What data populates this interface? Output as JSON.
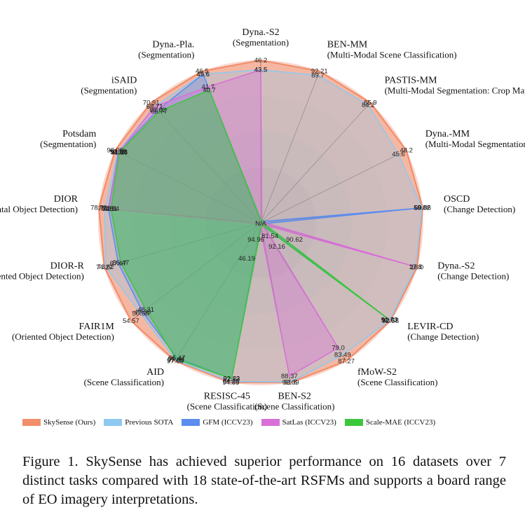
{
  "chart_data": {
    "type": "radar",
    "axes": [
      {
        "name": "Dyna.-S2",
        "task": "(Segmentation)",
        "values": {
          "skysense": 46.2,
          "sota": 43.5,
          "satlas": 43.5
        }
      },
      {
        "name": "BEN-MM",
        "task": "(Multi-Modal Scene Classification)",
        "values": {
          "skysense": 92.21,
          "sota": 89.7
        }
      },
      {
        "name": "PASTIS-MM",
        "task": "(Multi-Modal Segmentation: Crop Mapping)",
        "values": {
          "skysense": 85.9,
          "sota": 84.2
        }
      },
      {
        "name": "Dyna.-MM",
        "task": "(Multi-Modal Segmentation: LandCover Mapping )",
        "values": {
          "skysense": 48.2,
          "sota": 45.6
        }
      },
      {
        "name": "OSCD",
        "task": "(Change Detection)",
        "values": {
          "skysense": 60.06,
          "sota": 59.82,
          "gfm": 59.82
        }
      },
      {
        "name": "Dyna.-S2",
        "task": "(Change Detection)",
        "values": {
          "skysense": 18.0,
          "sota": 17.8,
          "satlas": 17.8
        }
      },
      {
        "name": "LEVIR-CD",
        "task": "(Change Detection)",
        "values": {
          "skysense": 92.58,
          "sota": 92.07,
          "gfm": 91.73,
          "scalemae": 92.07
        }
      },
      {
        "name": "fMoW-S2",
        "task": "(Scene Classification)",
        "values": {
          "skysense": 87.27,
          "sota": 83.49,
          "satlas": 79.0
        }
      },
      {
        "name": "BEN-S2",
        "task": "(Scene Classification)",
        "values": {
          "skysense": 92.09,
          "sota": 91.8,
          "satlas": 88.37
        }
      },
      {
        "name": "RESISC-45",
        "task": "(Scene Classification)",
        "values": {
          "skysense": 94.85,
          "sota": 94.25,
          "gfm": 92.73,
          "scalemae": 92.63
        }
      },
      {
        "name": "AID",
        "task": "(Scene Classification)",
        "values": {
          "skysense": 97.68,
          "sota": 97.03,
          "gfm": 95.47,
          "scalemae": 96.44
        }
      },
      {
        "name": "FAIR1M",
        "task": "(Oriented Object Detection)",
        "values": {
          "skysense": 54.57,
          "sota": 50.58,
          "gfm": 49.69,
          "scalemae": 48.31
        }
      },
      {
        "name": "DIOR-R",
        "task": "(Oriented Object Detection)",
        "values": {
          "skysense": 74.27,
          "sota": 73.62,
          "gfm": 67.67,
          "scalemae": 66.47
        }
      },
      {
        "name": "DIOR",
        "task": "(Horizontal Object Detection)",
        "values": {
          "skysense": 78.73,
          "sota": 75.9,
          "gfm": 74.1,
          "satlas": 73.81,
          "scalemae": 72.84
        }
      },
      {
        "name": "Potsdam",
        "task": "(Segmentation)",
        "values": {
          "skysense": 93.99,
          "sota": 92.12,
          "gfm": 91.85,
          "satlas": 91.54,
          "scalemae": 91.28
        }
      },
      {
        "name": "iSAID",
        "task": "(Segmentation)",
        "values": {
          "skysense": 70.91,
          "sota": 68.71,
          "gfm": 66.62,
          "satlas": 68.71,
          "scalemae": 65.77
        }
      },
      {
        "name": "Dyna.-Pla.",
        "task": "(Segmentation)",
        "values": {
          "skysense": 46.5,
          "sota": 45.6,
          "gfm": 45.6,
          "satlas": 41.7,
          "scalemae": 40.7
        }
      }
    ],
    "center_label": "N/A",
    "inner_labels": [
      "81.54",
      "90.62",
      "92.16",
      "94.96",
      "46.19"
    ],
    "series": [
      {
        "key": "skysense",
        "name": "SkySense (Ours)",
        "color": "#F28E6B"
      },
      {
        "key": "sota",
        "name": "Previous SOTA",
        "color": "#8EC9F2"
      },
      {
        "key": "gfm",
        "name": "GFM (ICCV23)",
        "color": "#5B8DEF"
      },
      {
        "key": "satlas",
        "name": "SatLas (ICCV23)",
        "color": "#D86FD8"
      },
      {
        "key": "scalemae",
        "name": "Scale-MAE (ICCV23)",
        "color": "#3CC73C"
      }
    ]
  },
  "caption": "Figure 1.  SkySense has achieved superior performance on 16 datasets over 7 distinct tasks compared with 18 state-of-the-art RSFMs and supports a board range of EO imagery interpretations."
}
